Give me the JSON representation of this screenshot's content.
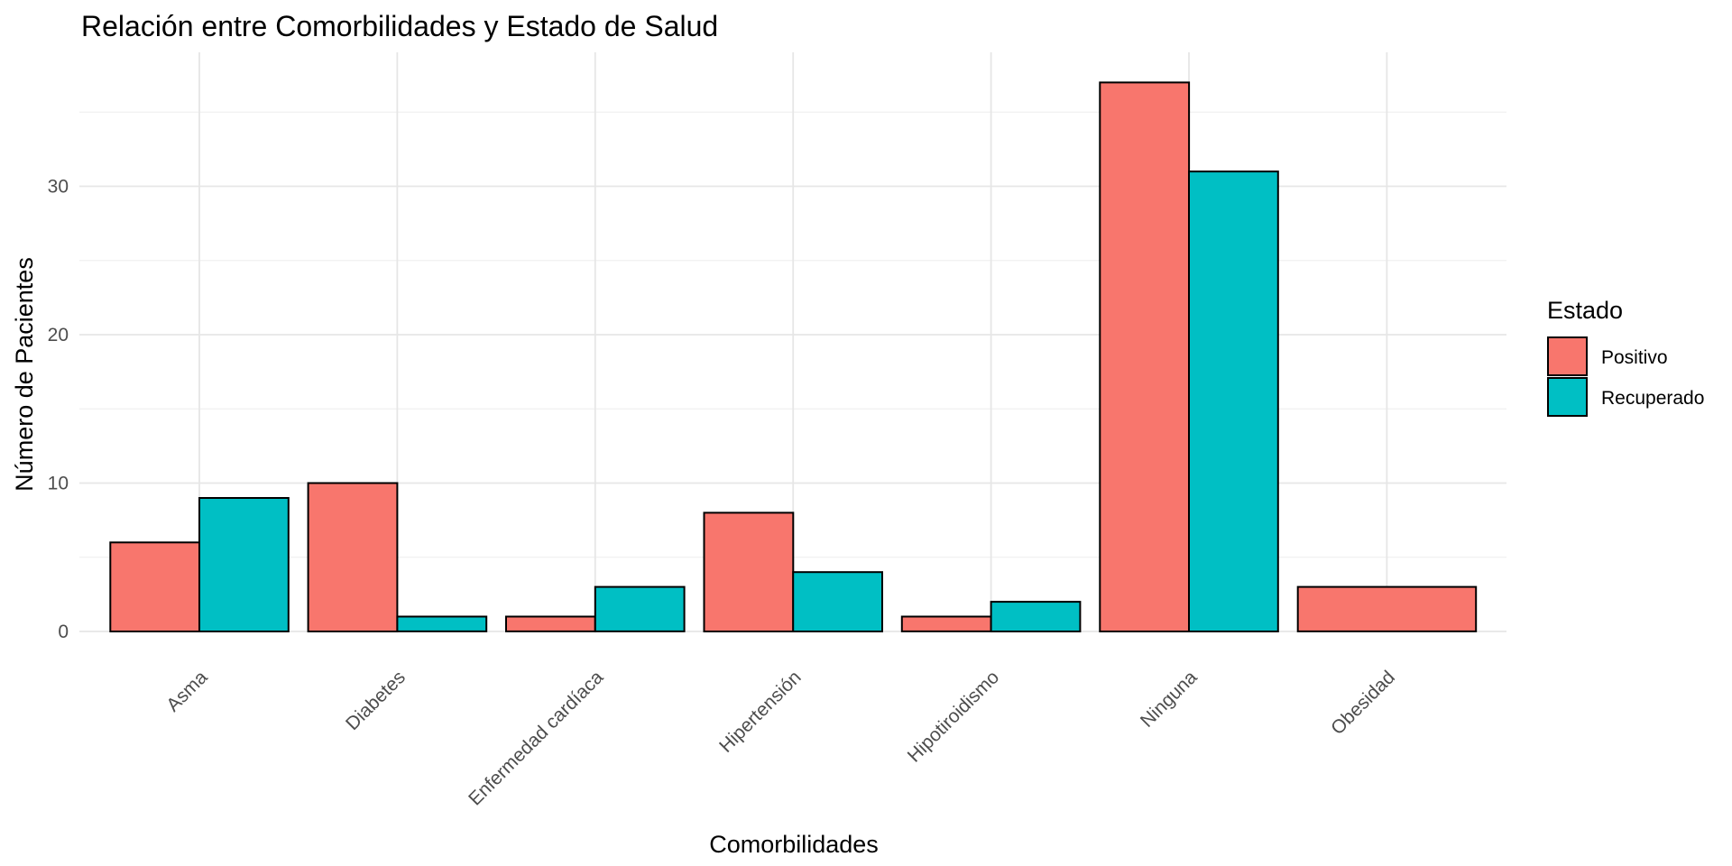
{
  "chart_data": {
    "type": "bar",
    "title": "Relación entre Comorbilidades y Estado de Salud",
    "xlabel": "Comorbilidades",
    "ylabel": "Número de Pacientes",
    "categories": [
      "Asma",
      "Diabetes",
      "Enfermedad cardíaca",
      "Hipertensión",
      "Hipotiroidismo",
      "Ninguna",
      "Obesidad"
    ],
    "series": [
      {
        "name": "Positivo",
        "color": "#F8766D",
        "values": [
          6,
          10,
          1,
          8,
          1,
          37,
          3
        ]
      },
      {
        "name": "Recuperado",
        "color": "#00BFC4",
        "values": [
          9,
          1,
          3,
          4,
          2,
          31,
          null
        ]
      }
    ],
    "ylim": [
      0,
      37
    ],
    "yticks": [
      0,
      10,
      20,
      30
    ],
    "legend": {
      "title": "Estado",
      "placement": "right"
    },
    "grid": true,
    "x_tick_rotation_deg": -45
  }
}
